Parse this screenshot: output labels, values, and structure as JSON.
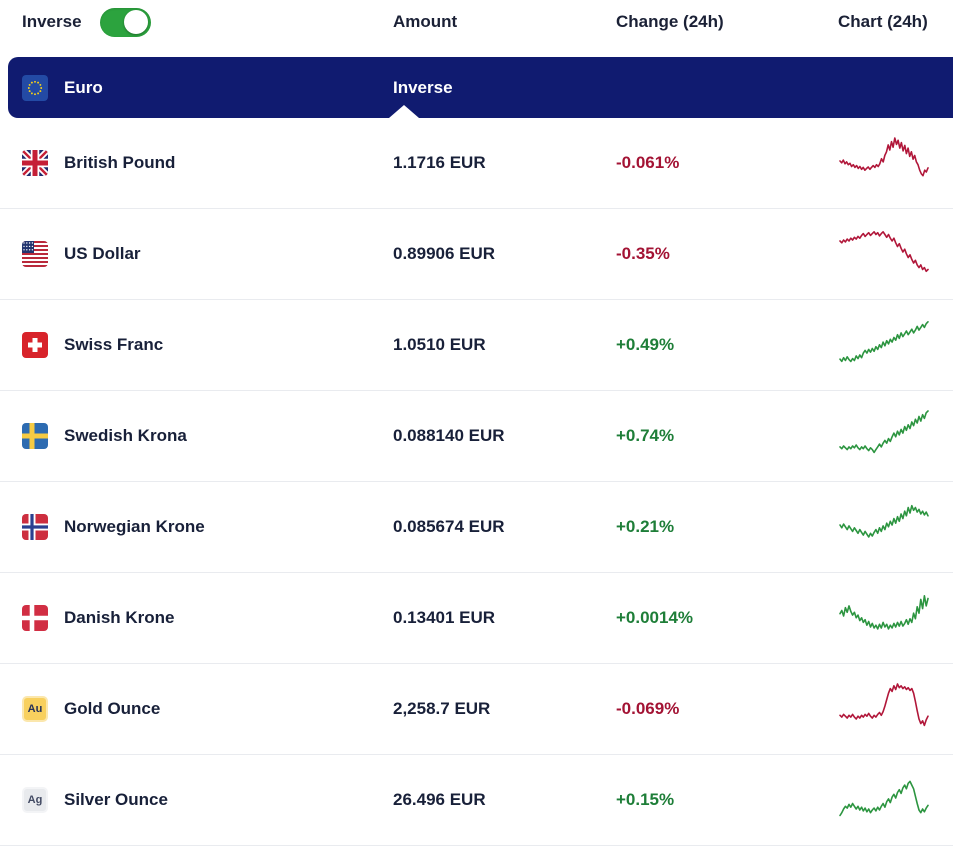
{
  "controls": {
    "inverse_label": "Inverse",
    "inverse_toggle_state": "on"
  },
  "columns": {
    "amount": "Amount",
    "change": "Change (24h)",
    "chart": "Chart (24h)"
  },
  "base_currency": {
    "name": "Euro",
    "flag": "eu",
    "amount_cell": "Inverse"
  },
  "colors": {
    "banner_navy": "#101b70",
    "toggle_green": "#2ca33e",
    "change_up_green": "#1e7e38",
    "change_down_red": "#a31334",
    "spark_up_green": "#2c9540",
    "spark_down_red": "#b1173a"
  },
  "rows": [
    {
      "name": "British Pound",
      "flag": "gb",
      "amount": "1.1716 EUR",
      "change": "-0.061%",
      "direction": "down",
      "sparkline": [
        0.5,
        0.46,
        0.52,
        0.44,
        0.48,
        0.42,
        0.45,
        0.38,
        0.42,
        0.36,
        0.4,
        0.34,
        0.38,
        0.32,
        0.36,
        0.3,
        0.34,
        0.37,
        0.32,
        0.36,
        0.4,
        0.36,
        0.42,
        0.38,
        0.44,
        0.55,
        0.48,
        0.62,
        0.7,
        0.85,
        0.74,
        0.92,
        0.8,
        1.0,
        0.86,
        0.95,
        0.78,
        0.9,
        0.72,
        0.84,
        0.66,
        0.78,
        0.6,
        0.7,
        0.54,
        0.62,
        0.48,
        0.42,
        0.3,
        0.22,
        0.18,
        0.3,
        0.26,
        0.35
      ]
    },
    {
      "name": "US Dollar",
      "flag": "us",
      "amount": "0.89906 EUR",
      "change": "-0.35%",
      "direction": "down",
      "sparkline": [
        0.74,
        0.7,
        0.76,
        0.72,
        0.78,
        0.74,
        0.8,
        0.76,
        0.82,
        0.78,
        0.84,
        0.8,
        0.86,
        0.9,
        0.84,
        0.88,
        0.92,
        0.86,
        0.9,
        0.94,
        0.88,
        0.92,
        0.85,
        0.9,
        0.94,
        0.88,
        0.82,
        0.88,
        0.8,
        0.74,
        0.8,
        0.7,
        0.62,
        0.68,
        0.58,
        0.5,
        0.56,
        0.46,
        0.38,
        0.44,
        0.34,
        0.26,
        0.32,
        0.22,
        0.16,
        0.22,
        0.12,
        0.16,
        0.08,
        0.12
      ]
    },
    {
      "name": "Swiss Franc",
      "flag": "ch",
      "amount": "1.0510 EUR",
      "change": "+0.49%",
      "direction": "up",
      "sparkline": [
        0.15,
        0.1,
        0.18,
        0.12,
        0.2,
        0.14,
        0.1,
        0.16,
        0.12,
        0.22,
        0.16,
        0.24,
        0.18,
        0.28,
        0.34,
        0.28,
        0.36,
        0.3,
        0.38,
        0.32,
        0.42,
        0.36,
        0.46,
        0.4,
        0.52,
        0.44,
        0.55,
        0.48,
        0.58,
        0.52,
        0.62,
        0.56,
        0.68,
        0.6,
        0.72,
        0.64,
        0.7,
        0.76,
        0.68,
        0.74,
        0.8,
        0.72,
        0.78,
        0.86,
        0.78,
        0.84,
        0.9,
        0.84,
        0.92,
        0.96
      ]
    },
    {
      "name": "Swedish Krona",
      "flag": "se",
      "amount": "0.088140 EUR",
      "change": "+0.74%",
      "direction": "up",
      "sparkline": [
        0.22,
        0.18,
        0.24,
        0.2,
        0.16,
        0.22,
        0.18,
        0.24,
        0.2,
        0.26,
        0.2,
        0.16,
        0.22,
        0.18,
        0.24,
        0.18,
        0.14,
        0.2,
        0.16,
        0.1,
        0.16,
        0.22,
        0.28,
        0.22,
        0.3,
        0.36,
        0.3,
        0.4,
        0.34,
        0.44,
        0.52,
        0.44,
        0.56,
        0.48,
        0.6,
        0.52,
        0.66,
        0.58,
        0.7,
        0.62,
        0.76,
        0.68,
        0.82,
        0.74,
        0.88,
        0.78,
        0.92,
        0.84,
        0.96,
        1.0
      ]
    },
    {
      "name": "Norwegian Krone",
      "flag": "no",
      "amount": "0.085674 EUR",
      "change": "+0.21%",
      "direction": "up",
      "sparkline": [
        0.5,
        0.44,
        0.52,
        0.46,
        0.4,
        0.48,
        0.42,
        0.36,
        0.44,
        0.38,
        0.32,
        0.4,
        0.34,
        0.28,
        0.36,
        0.3,
        0.24,
        0.32,
        0.26,
        0.34,
        0.4,
        0.32,
        0.44,
        0.36,
        0.48,
        0.4,
        0.54,
        0.46,
        0.58,
        0.5,
        0.64,
        0.54,
        0.68,
        0.58,
        0.74,
        0.64,
        0.8,
        0.7,
        0.88,
        0.76,
        0.92,
        0.82,
        0.88,
        0.78,
        0.84,
        0.74,
        0.8,
        0.72,
        0.78,
        0.7
      ]
    },
    {
      "name": "Danish Krone",
      "flag": "dk",
      "amount": "0.13401 EUR",
      "change": "+0.0014%",
      "direction": "up",
      "sparkline": [
        0.55,
        0.62,
        0.5,
        0.68,
        0.58,
        0.72,
        0.6,
        0.52,
        0.58,
        0.46,
        0.52,
        0.4,
        0.46,
        0.36,
        0.42,
        0.3,
        0.38,
        0.26,
        0.34,
        0.24,
        0.3,
        0.22,
        0.32,
        0.24,
        0.36,
        0.26,
        0.32,
        0.22,
        0.3,
        0.24,
        0.34,
        0.26,
        0.36,
        0.28,
        0.38,
        0.28,
        0.34,
        0.42,
        0.32,
        0.44,
        0.36,
        0.56,
        0.44,
        0.7,
        0.56,
        0.86,
        0.66,
        0.94,
        0.72,
        0.88
      ]
    },
    {
      "name": "Gold Ounce",
      "flag": "au",
      "badge": {
        "text": "Au",
        "bg": "#f8d05e",
        "border": "#fbe7ad",
        "color": "#263157"
      },
      "amount": "2,258.7 EUR",
      "change": "-0.069%",
      "direction": "down",
      "sparkline": [
        0.32,
        0.28,
        0.34,
        0.3,
        0.26,
        0.32,
        0.28,
        0.34,
        0.28,
        0.24,
        0.3,
        0.26,
        0.32,
        0.28,
        0.34,
        0.3,
        0.36,
        0.3,
        0.26,
        0.32,
        0.28,
        0.34,
        0.38,
        0.32,
        0.4,
        0.52,
        0.66,
        0.8,
        0.9,
        0.84,
        0.96,
        0.88,
        1.0,
        0.92,
        0.96,
        0.9,
        0.94,
        0.88,
        0.92,
        0.86,
        0.9,
        0.8,
        0.62,
        0.42,
        0.24,
        0.14,
        0.2,
        0.1,
        0.22,
        0.3
      ]
    },
    {
      "name": "Silver Ounce",
      "flag": "ag",
      "badge": {
        "text": "Ag",
        "bg": "#e8eaed",
        "border": "#f3f4f6",
        "color": "#424a63"
      },
      "amount": "26.496 EUR",
      "change": "+0.15%",
      "direction": "up",
      "sparkline": [
        0.12,
        0.18,
        0.26,
        0.32,
        0.28,
        0.36,
        0.3,
        0.38,
        0.32,
        0.26,
        0.32,
        0.24,
        0.3,
        0.22,
        0.28,
        0.2,
        0.26,
        0.18,
        0.24,
        0.28,
        0.22,
        0.3,
        0.24,
        0.32,
        0.38,
        0.3,
        0.42,
        0.48,
        0.4,
        0.52,
        0.58,
        0.5,
        0.62,
        0.68,
        0.6,
        0.72,
        0.78,
        0.7,
        0.82,
        0.86,
        0.78,
        0.7,
        0.54,
        0.38,
        0.24,
        0.18,
        0.26,
        0.2,
        0.28,
        0.34
      ]
    }
  ]
}
